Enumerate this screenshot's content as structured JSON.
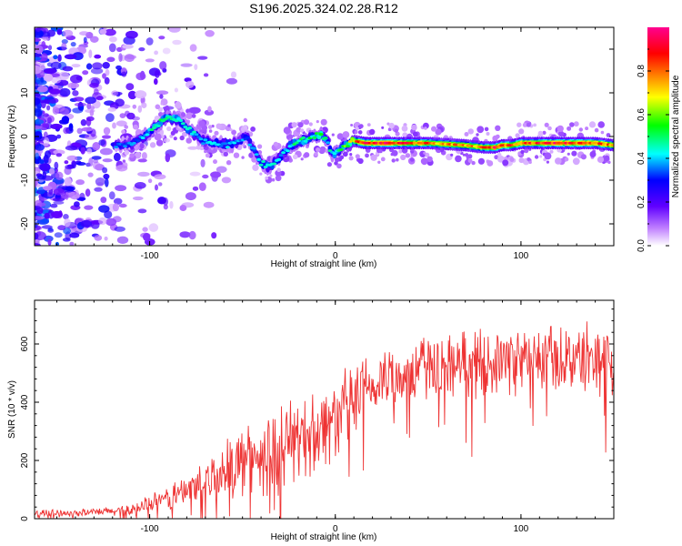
{
  "title": "S196.2025.324.02.28.R12",
  "chart_data": [
    {
      "type": "heatmap",
      "name": "spectrogram",
      "xlabel": "Height of straight line (km)",
      "ylabel": "Frequency (Hz)",
      "xlim": [
        -162,
        150
      ],
      "ylim": [
        -25,
        25
      ],
      "xticks": [
        -100,
        0,
        100
      ],
      "yticks": [
        -20,
        -10,
        0,
        10,
        20
      ],
      "colorbar": {
        "label": "Normalized spectral amplitude",
        "range": [
          0,
          1
        ],
        "ticks": [
          0.0,
          0.2,
          0.4,
          0.6,
          0.8
        ],
        "colors": [
          "#ffffff",
          "#8000ff",
          "#0000ff",
          "#00ffff",
          "#00ff00",
          "#ffff00",
          "#ff8000",
          "#ff0000",
          "#ff00aa"
        ]
      },
      "ridge": {
        "x": [
          -118,
          -108,
          -100,
          -92,
          -86,
          -80,
          -72,
          -64,
          -56,
          -48,
          -40,
          -36,
          -30,
          -24,
          -18,
          -12,
          -8,
          -4,
          -2,
          2,
          5,
          10,
          16,
          30,
          50,
          70,
          80,
          86,
          90,
          95,
          100,
          120,
          140,
          150
        ],
        "freq": [
          -2,
          -1.5,
          1,
          4,
          4,
          2,
          -1,
          -1.5,
          -2,
          0,
          -6,
          -7,
          -5,
          -2,
          -1,
          0,
          0.5,
          -1,
          -4,
          -3.5,
          -2,
          -1,
          -1.5,
          -1.5,
          -1.5,
          -2,
          -2.5,
          -2.5,
          -2,
          -2,
          -1.5,
          -1.5,
          -1.5,
          -2
        ],
        "amplitude": [
          0.35,
          0.35,
          0.45,
          0.5,
          0.5,
          0.45,
          0.4,
          0.4,
          0.4,
          0.35,
          0.45,
          0.45,
          0.4,
          0.45,
          0.5,
          0.5,
          0.55,
          0.45,
          0.45,
          0.5,
          0.55,
          0.75,
          0.9,
          0.9,
          0.8,
          0.75,
          0.8,
          0.9,
          0.85,
          0.85,
          0.85,
          0.9,
          0.85,
          0.8
        ]
      }
    },
    {
      "type": "line",
      "name": "snr",
      "xlabel": "Height of straight line (km)",
      "ylabel": "SNR (10 * v/v)",
      "xlim": [
        -162,
        150
      ],
      "ylim": [
        0,
        750
      ],
      "xticks": [
        -100,
        0,
        100
      ],
      "yticks": [
        0,
        200,
        400,
        600
      ],
      "color": "#ee3333",
      "x": [
        -162,
        -150,
        -140,
        -130,
        -120,
        -110,
        -100,
        -90,
        -80,
        -70,
        -60,
        -50,
        -40,
        -30,
        -20,
        -10,
        0,
        10,
        20,
        30,
        40,
        50,
        60,
        70,
        80,
        90,
        100,
        110,
        120,
        130,
        140,
        150
      ],
      "y": [
        18,
        20,
        20,
        22,
        25,
        35,
        50,
        70,
        100,
        130,
        165,
        200,
        225,
        250,
        275,
        300,
        345,
        400,
        450,
        490,
        510,
        520,
        530,
        535,
        540,
        540,
        545,
        550,
        555,
        550,
        560,
        560
      ],
      "spread": [
        15,
        15,
        15,
        15,
        20,
        25,
        35,
        50,
        70,
        90,
        110,
        140,
        150,
        160,
        165,
        170,
        170,
        150,
        140,
        140,
        130,
        130,
        130,
        130,
        130,
        130,
        135,
        135,
        140,
        140,
        140,
        140
      ]
    }
  ]
}
